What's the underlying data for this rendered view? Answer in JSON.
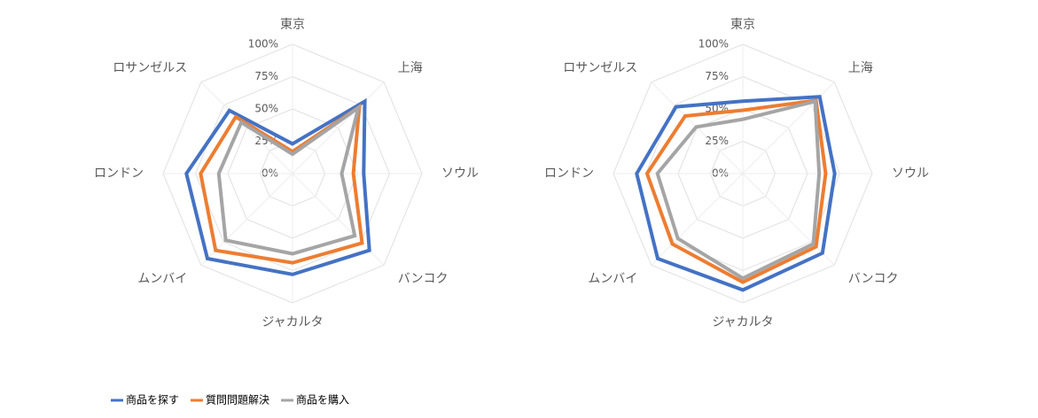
{
  "chart_data": [
    {
      "type": "radar",
      "categories": [
        "東京",
        "上海",
        "ソウル",
        "バンコク",
        "ジャカルタ",
        "ムンバイ",
        "ロンドン",
        "ロサンゼルス"
      ],
      "ylim": [
        0,
        100
      ],
      "yticks": [
        {
          "value": 0,
          "label": "0%"
        },
        {
          "value": 25,
          "label": "25%"
        },
        {
          "value": 50,
          "label": "50%"
        },
        {
          "value": 75,
          "label": "75%"
        },
        {
          "value": 100,
          "label": "100%"
        }
      ],
      "grid": true,
      "series": [
        {
          "name": "商品を探す",
          "color": "#4472c4",
          "values": [
            23,
            79,
            55,
            84,
            78,
            93,
            82,
            69
          ]
        },
        {
          "name": "質問問題解決",
          "color": "#ed7d31",
          "values": [
            17,
            73,
            47,
            76,
            69,
            84,
            71,
            62
          ]
        },
        {
          "name": "商品を購入",
          "color": "#a5a5a5",
          "values": [
            15,
            72,
            38,
            68,
            62,
            73,
            57,
            56
          ]
        }
      ]
    },
    {
      "type": "radar",
      "categories": [
        "東京",
        "上海",
        "ソウル",
        "バンコク",
        "ジャカルタ",
        "ムンバイ",
        "ロンドン",
        "ロサンゼルス"
      ],
      "ylim": [
        0,
        100
      ],
      "yticks": [
        {
          "value": 0,
          "label": "0%"
        },
        {
          "value": 25,
          "label": "25%"
        },
        {
          "value": 50,
          "label": "50%"
        },
        {
          "value": 75,
          "label": "75%"
        },
        {
          "value": 100,
          "label": "100%"
        }
      ],
      "grid": true,
      "series": [
        {
          "color": "#4472c4",
          "values": [
            56,
            84,
            71,
            87,
            90,
            93,
            82,
            73
          ]
        },
        {
          "color": "#ed7d31",
          "values": [
            49,
            80,
            64,
            80,
            84,
            77,
            74,
            63
          ]
        },
        {
          "color": "#a5a5a5",
          "values": [
            42,
            79,
            59,
            77,
            81,
            71,
            66,
            51
          ]
        }
      ]
    }
  ]
}
